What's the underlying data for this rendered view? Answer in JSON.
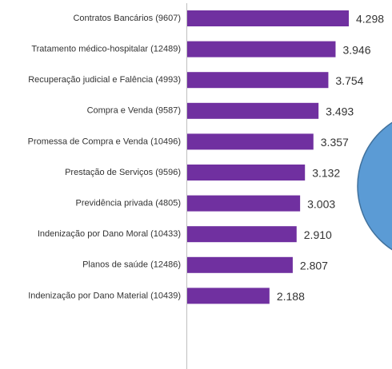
{
  "chart_data": {
    "type": "bar",
    "orientation": "horizontal",
    "color": "#7030a0",
    "categories": [
      "Contratos Bancários (9607)",
      "Tratamento médico-hospitalar (12489)",
      "Recuperação judicial e Falência (4993)",
      "Compra e Venda (9587)",
      "Promessa de Compra e Venda (10496)",
      "Prestação de Serviços (9596)",
      "Previdência privada (4805)",
      "Indenização por Dano Moral (10433)",
      "Planos de saúde (12486)",
      "Indenização por Dano Material (10439)"
    ],
    "values": [
      4298,
      3946,
      3754,
      3493,
      3357,
      3132,
      3003,
      2910,
      2807,
      2188
    ],
    "value_labels": [
      "4.298",
      "3.946",
      "3.754",
      "3.493",
      "3.357",
      "3.132",
      "3.003",
      "2.910",
      "2.807",
      "2.188"
    ]
  }
}
